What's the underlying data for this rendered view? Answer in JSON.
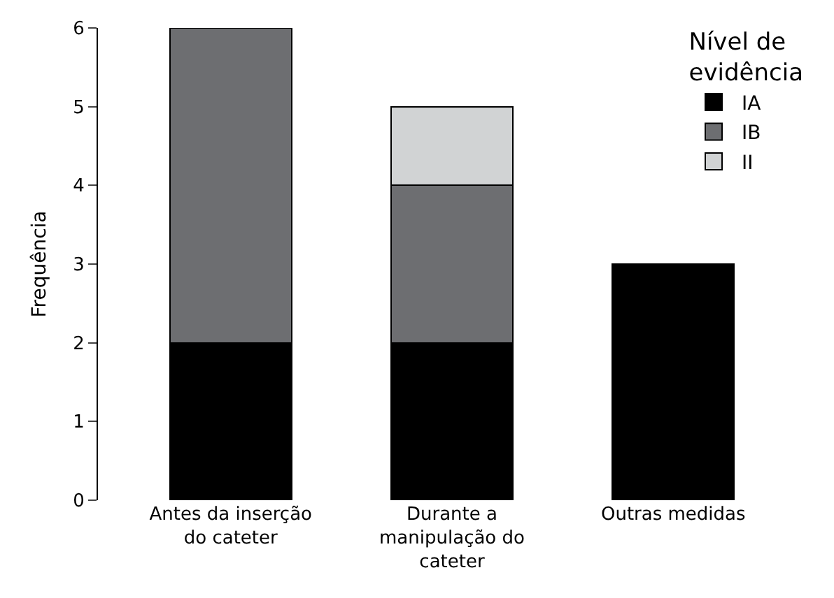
{
  "chart_data": {
    "type": "bar",
    "stacked": true,
    "ylabel": "Frequência",
    "legend_title": "Nível de evidência",
    "legend": "top right",
    "categories": [
      "Antes da inserção do cateter",
      "Durante a manipulação do cateter",
      "Outras medidas"
    ],
    "series": [
      {
        "name": "IA",
        "color": "#000000",
        "values": [
          2,
          2,
          3
        ]
      },
      {
        "name": "IB",
        "color": "#6d6e71",
        "values": [
          4,
          2,
          null
        ]
      },
      {
        "name": "II",
        "color": "#d1d3d4",
        "values": [
          null,
          1,
          null
        ]
      }
    ],
    "ylim": [
      0,
      6
    ],
    "yticks": [
      0,
      1,
      2,
      3,
      4,
      5,
      6
    ]
  }
}
